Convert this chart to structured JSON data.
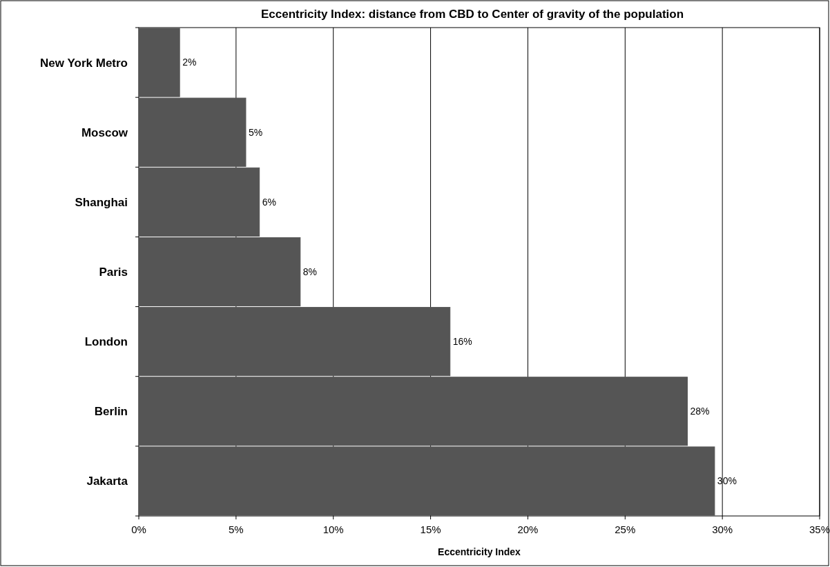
{
  "chart_data": {
    "type": "bar",
    "orientation": "horizontal",
    "title": "Eccentricity Index: distance from CBD to Center of gravity of the population",
    "xlabel": "Eccentricity Index",
    "categories": [
      "New York Metro",
      "Moscow",
      "Shanghai",
      "Paris",
      "London",
      "Berlin",
      "Jakarta"
    ],
    "values": [
      2.1,
      5.5,
      6.2,
      8.3,
      16.0,
      28.2,
      29.6
    ],
    "value_labels": [
      "2%",
      "5%",
      "6%",
      "8%",
      "16%",
      "28%",
      "30%"
    ],
    "color": "#555555",
    "xlim": [
      0,
      35
    ],
    "xticks": [
      {
        "value": 0,
        "label": "0%"
      },
      {
        "value": 5,
        "label": "5%"
      },
      {
        "value": 10,
        "label": "10%"
      },
      {
        "value": 15,
        "label": "15%"
      },
      {
        "value": 20,
        "label": "20%"
      },
      {
        "value": 25,
        "label": "25%"
      },
      {
        "value": 30,
        "label": "30%"
      },
      {
        "value": 35,
        "label": "35%"
      }
    ],
    "grid": "x"
  }
}
